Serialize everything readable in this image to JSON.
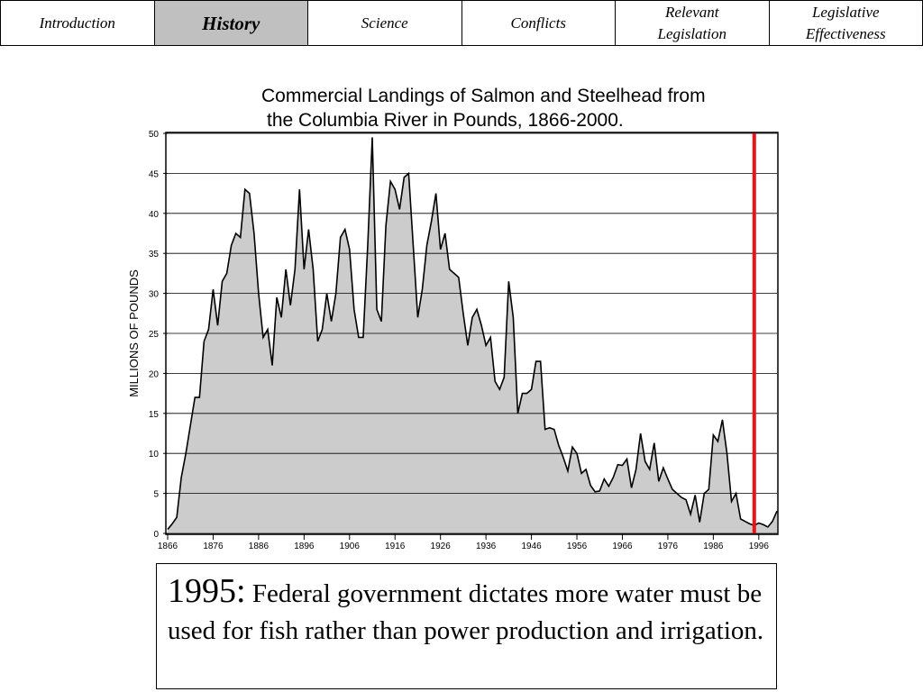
{
  "nav": {
    "tabs": [
      {
        "label": "Introduction"
      },
      {
        "label": "History",
        "active": true
      },
      {
        "label": "Science"
      },
      {
        "label": "Conflicts"
      },
      {
        "label": "Relevant Legislation"
      },
      {
        "label": "Legislative Effectiveness"
      }
    ]
  },
  "chart_data": {
    "type": "area",
    "title_lines": [
      "Commercial Landings of Salmon and Steelhead from",
      "the Columbia River in Pounds, 1866-2000."
    ],
    "y_label": "MILLIONS OF POUNDS",
    "color": "#cccccc",
    "line_color": "#000000",
    "x": [
      1866,
      1867,
      1868,
      1869,
      1870,
      1871,
      1872,
      1873,
      1874,
      1875,
      1876,
      1877,
      1878,
      1879,
      1880,
      1881,
      1882,
      1883,
      1884,
      1885,
      1886,
      1887,
      1888,
      1889,
      1890,
      1891,
      1892,
      1893,
      1894,
      1895,
      1896,
      1897,
      1898,
      1899,
      1900,
      1901,
      1902,
      1903,
      1904,
      1905,
      1906,
      1907,
      1908,
      1909,
      1910,
      1911,
      1912,
      1913,
      1914,
      1915,
      1916,
      1917,
      1918,
      1919,
      1920,
      1921,
      1922,
      1923,
      1924,
      1925,
      1926,
      1927,
      1928,
      1929,
      1930,
      1931,
      1932,
      1933,
      1934,
      1935,
      1936,
      1937,
      1938,
      1939,
      1940,
      1941,
      1942,
      1943,
      1944,
      1945,
      1946,
      1947,
      1948,
      1949,
      1950,
      1951,
      1952,
      1953,
      1954,
      1955,
      1956,
      1957,
      1958,
      1959,
      1960,
      1961,
      1962,
      1963,
      1964,
      1965,
      1966,
      1967,
      1968,
      1969,
      1970,
      1971,
      1972,
      1973,
      1974,
      1975,
      1976,
      1977,
      1978,
      1979,
      1980,
      1981,
      1982,
      1983,
      1984,
      1985,
      1986,
      1987,
      1988,
      1989,
      1990,
      1991,
      1992,
      1993,
      1994,
      1995,
      1996,
      1997,
      1998,
      1999,
      2000
    ],
    "values": [
      0.5,
      1.2,
      2,
      7,
      10,
      13.5,
      17,
      17,
      24,
      25.5,
      30.5,
      26,
      31.5,
      32.5,
      36,
      37.5,
      37,
      43,
      42.5,
      37.5,
      30,
      24.5,
      25.5,
      21,
      29.5,
      27,
      33,
      28.5,
      33,
      43,
      33,
      38,
      33,
      24,
      25.5,
      30,
      26.5,
      30,
      37,
      38,
      35.5,
      28,
      24.5,
      24.5,
      36,
      49.5,
      28,
      26.5,
      38.5,
      44,
      43,
      40.5,
      44.5,
      45,
      36,
      27,
      30.5,
      36,
      39,
      42.5,
      35.5,
      37.5,
      33,
      32.5,
      32,
      27.5,
      23.5,
      27,
      28,
      26,
      23.5,
      24.5,
      19,
      18,
      19.5,
      31.5,
      27,
      15,
      17.5,
      17.5,
      18,
      21.5,
      21.5,
      13,
      13.2,
      13,
      11,
      9.5,
      7.8,
      10.8,
      10,
      7.5,
      8,
      6,
      5.2,
      5.3,
      6.8,
      5.9,
      7,
      8.6,
      8.5,
      9.3,
      5.7,
      8,
      12.5,
      9,
      8,
      11.3,
      6.5,
      8.2,
      6.8,
      5.5,
      5,
      4.5,
      4.2,
      2.4,
      4.8,
      1.4,
      5,
      5.5,
      12.3,
      11.5,
      14.2,
      10,
      4,
      5,
      1.8,
      1.5,
      1.2,
      1,
      1.3,
      1.1,
      0.8,
      1.5,
      2.8
    ],
    "xlim": [
      1866,
      2000
    ],
    "xticks": [
      1866,
      1876,
      1886,
      1896,
      1906,
      1916,
      1926,
      1936,
      1946,
      1956,
      1966,
      1976,
      1986,
      1996
    ],
    "ylim": [
      0,
      50
    ],
    "yticks": [
      0,
      5,
      10,
      15,
      20,
      25,
      30,
      35,
      40,
      45,
      50
    ],
    "grid": true,
    "marker_line": {
      "x": 1995,
      "color": "#e8141b"
    }
  },
  "caption": {
    "lead": "1995:",
    "text": "Federal government dictates more water must be used for fish rather than power production and irrigation."
  }
}
